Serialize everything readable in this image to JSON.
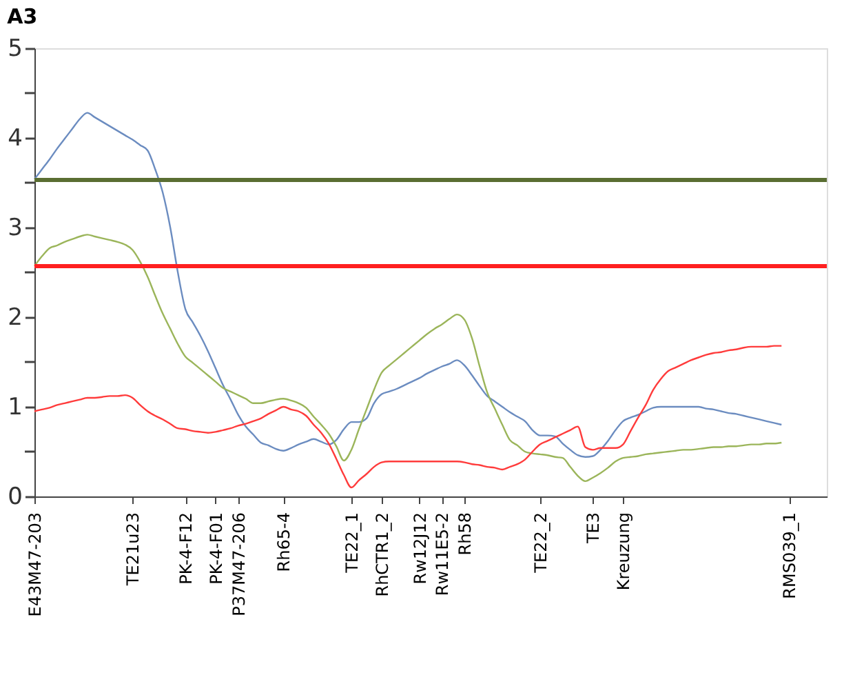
{
  "chart_data": {
    "type": "line",
    "title": "A3",
    "categories": [
      "E43M47-203",
      null,
      null,
      null,
      null,
      null,
      null,
      null,
      null,
      null,
      null,
      null,
      null,
      "TE21u23",
      null,
      null,
      null,
      null,
      null,
      null,
      "PK-4-F12",
      null,
      null,
      null,
      "PK-4-F01",
      null,
      null,
      "P37M47-206",
      null,
      null,
      null,
      null,
      null,
      "Rh65-4",
      null,
      null,
      null,
      null,
      null,
      null,
      null,
      null,
      "TE22_1",
      null,
      null,
      null,
      "RhCTR1_2",
      null,
      null,
      null,
      null,
      "Rw12J12",
      null,
      null,
      "Rw11E5-2",
      null,
      null,
      "Rh58",
      null,
      null,
      null,
      null,
      null,
      null,
      null,
      null,
      null,
      "TE22_2",
      null,
      null,
      null,
      null,
      null,
      null,
      "TE3",
      null,
      null,
      null,
      "Kreuzung",
      null,
      null,
      null,
      null,
      null,
      null,
      null,
      null,
      null,
      null,
      null,
      null,
      null,
      null,
      null,
      null,
      null,
      null,
      null,
      null,
      null,
      "RMS039_1",
      null,
      null,
      null,
      null,
      null
    ],
    "ylim": [
      0,
      5
    ],
    "yticks": [
      0,
      {
        "value": 0.5,
        "label": null
      },
      1,
      {
        "value": 1.5,
        "label": null
      },
      2,
      {
        "value": 2.5,
        "label": null
      },
      3,
      {
        "value": 3.5,
        "label": null
      },
      4,
      {
        "value": 4.5,
        "label": null
      },
      5
    ],
    "grid": false,
    "marker": "none",
    "line_style": "solid",
    "series": [
      {
        "color": "#6b8cc0",
        "values": [
          3.54,
          3.65,
          3.76,
          3.88,
          3.99,
          4.1,
          4.21,
          4.28,
          4.23,
          4.18,
          4.13,
          4.08,
          4.03,
          3.98,
          3.92,
          3.86,
          3.65,
          3.39,
          3.0,
          2.5,
          2.09,
          1.94,
          1.79,
          1.62,
          1.43,
          1.24,
          1.08,
          0.91,
          0.78,
          0.69,
          0.6,
          0.57,
          0.53,
          0.51,
          0.54,
          0.58,
          0.61,
          0.64,
          0.61,
          0.58,
          0.63,
          0.75,
          0.83,
          0.83,
          0.87,
          1.04,
          1.14,
          1.17,
          1.2,
          1.24,
          1.28,
          1.32,
          1.37,
          1.41,
          1.45,
          1.48,
          1.52,
          1.46,
          1.35,
          1.23,
          1.12,
          1.06,
          1.0,
          0.94,
          0.89,
          0.84,
          0.74,
          0.68,
          0.68,
          0.67,
          0.59,
          0.52,
          0.46,
          0.44,
          0.45,
          0.52,
          0.62,
          0.74,
          0.84,
          0.88,
          0.91,
          0.95,
          0.99,
          1.0,
          1.0,
          1.0,
          1.0,
          1.0,
          1.0,
          0.98,
          0.97,
          0.95,
          0.93,
          0.92,
          0.9,
          0.88,
          0.86,
          0.84,
          0.82,
          0.8,
          null,
          null,
          null,
          null,
          null,
          null
        ]
      },
      {
        "color": "#9bb55a",
        "values": [
          2.57,
          2.68,
          2.77,
          2.8,
          2.84,
          2.87,
          2.9,
          2.92,
          2.9,
          2.88,
          2.86,
          2.84,
          2.81,
          2.75,
          2.62,
          2.45,
          2.24,
          2.04,
          1.87,
          1.7,
          1.56,
          1.49,
          1.42,
          1.35,
          1.28,
          1.21,
          1.17,
          1.13,
          1.09,
          1.04,
          1.04,
          1.06,
          1.08,
          1.09,
          1.07,
          1.04,
          0.99,
          0.89,
          0.8,
          0.7,
          0.56,
          0.4,
          0.52,
          0.75,
          0.97,
          1.19,
          1.38,
          1.46,
          1.53,
          1.6,
          1.67,
          1.74,
          1.81,
          1.87,
          1.92,
          1.98,
          2.03,
          1.97,
          1.76,
          1.45,
          1.16,
          0.98,
          0.8,
          0.63,
          0.57,
          0.5,
          0.48,
          0.47,
          0.46,
          0.44,
          0.43,
          0.33,
          0.23,
          0.17,
          0.21,
          0.26,
          0.32,
          0.39,
          0.43,
          0.44,
          0.45,
          0.47,
          0.48,
          0.49,
          0.5,
          0.51,
          0.52,
          0.52,
          0.53,
          0.54,
          0.55,
          0.55,
          0.56,
          0.56,
          0.57,
          0.58,
          0.58,
          0.59,
          0.59,
          0.6,
          null,
          null,
          null,
          null,
          null,
          null
        ]
      },
      {
        "color": "#ff3b3b",
        "values": [
          0.95,
          0.97,
          0.99,
          1.02,
          1.04,
          1.06,
          1.08,
          1.1,
          1.1,
          1.11,
          1.12,
          1.12,
          1.13,
          1.1,
          1.02,
          0.95,
          0.9,
          0.86,
          0.81,
          0.76,
          0.75,
          0.73,
          0.72,
          0.71,
          0.72,
          0.74,
          0.76,
          0.79,
          0.81,
          0.84,
          0.87,
          0.92,
          0.96,
          1.0,
          0.97,
          0.95,
          0.9,
          0.8,
          0.71,
          0.59,
          0.42,
          0.24,
          0.1,
          0.18,
          0.25,
          0.33,
          0.38,
          0.39,
          0.39,
          0.39,
          0.39,
          0.39,
          0.39,
          0.39,
          0.39,
          0.39,
          0.39,
          0.38,
          0.36,
          0.35,
          0.33,
          0.32,
          0.3,
          0.33,
          0.36,
          0.41,
          0.5,
          0.58,
          0.62,
          0.66,
          0.7,
          0.74,
          0.78,
          0.55,
          0.52,
          0.54,
          0.54,
          0.54,
          0.58,
          0.73,
          0.88,
          1.02,
          1.19,
          1.31,
          1.4,
          1.44,
          1.48,
          1.52,
          1.55,
          1.58,
          1.6,
          1.61,
          1.63,
          1.64,
          1.66,
          1.67,
          1.67,
          1.67,
          1.68,
          1.68,
          null,
          null,
          null,
          null,
          null,
          null
        ]
      }
    ],
    "ref_lines": [
      {
        "axis": "y",
        "value": 3.53,
        "color": "#5a6e32"
      },
      {
        "axis": "y",
        "value": 2.57,
        "color": "#ff2020"
      }
    ]
  }
}
